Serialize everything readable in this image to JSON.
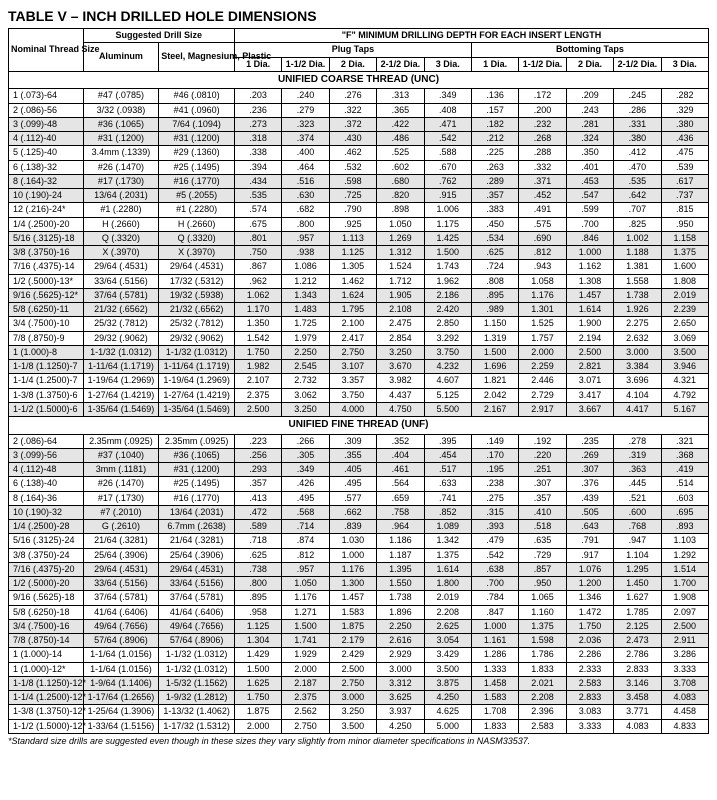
{
  "title": "TABLE V – INCH DRILLED HOLE DIMENSIONS",
  "footnote": "*Standard size drills are suggested even though in these sizes they vary slightly from minor diameter specifications in NASM33537.",
  "headers": {
    "nominal": "Nominal Thread Size",
    "suggested": "Suggested Drill Size",
    "aluminum": "Aluminum",
    "steel": "Steel, Magnesium, Plastic",
    "fmin": "\"F\" MINIMUM DRILLING DEPTH FOR EACH INSERT LENGTH",
    "plug": "Plug Taps",
    "bottoming": "Bottoming Taps",
    "d1": "1 Dia.",
    "d15": "1-1/2 Dia.",
    "d2": "2 Dia.",
    "d25": "2-1/2 Dia.",
    "d3": "3 Dia."
  },
  "sections": [
    {
      "title": "UNIFIED COARSE THREAD (UNC)",
      "rows": [
        {
          "label": "1 (.073)-64",
          "al": "#47 (.0785)",
          "st": "#46 (.0810)",
          "v": [
            ".203",
            ".240",
            ".276",
            ".313",
            ".349",
            ".136",
            ".172",
            ".209",
            ".245",
            ".282"
          ],
          "shade": false
        },
        {
          "label": "2 (.086)-56",
          "al": "3/32 (.0938)",
          "st": "#41 (.0960)",
          "v": [
            ".236",
            ".279",
            ".322",
            ".365",
            ".408",
            ".157",
            ".200",
            ".243",
            ".286",
            ".329"
          ],
          "shade": false
        },
        {
          "label": "3 (.099)-48",
          "al": "#36 (.1065)",
          "st": "7/64 (.1094)",
          "v": [
            ".273",
            ".323",
            ".372",
            ".422",
            ".471",
            ".182",
            ".232",
            ".281",
            ".331",
            ".380"
          ],
          "shade": true
        },
        {
          "label": "4 (.112)-40",
          "al": "#31 (.1200)",
          "st": "#31 (.1200)",
          "v": [
            ".318",
            ".374",
            ".430",
            ".486",
            ".542",
            ".212",
            ".268",
            ".324",
            ".380",
            ".436"
          ],
          "shade": true
        },
        {
          "label": "5 (.125)-40",
          "al": "3.4mm (.1339)",
          "st": "#29 (.1360)",
          "v": [
            ".338",
            ".400",
            ".462",
            ".525",
            ".588",
            ".225",
            ".288",
            ".350",
            ".412",
            ".475"
          ],
          "shade": false
        },
        {
          "label": "6 (.138)-32",
          "al": "#26 (.1470)",
          "st": "#25 (.1495)",
          "v": [
            ".394",
            ".464",
            ".532",
            ".602",
            ".670",
            ".263",
            ".332",
            ".401",
            ".470",
            ".539"
          ],
          "shade": false
        },
        {
          "label": "8 (.164)-32",
          "al": "#17 (.1730)",
          "st": "#16 (.1770)",
          "v": [
            ".434",
            ".516",
            ".598",
            ".680",
            ".762",
            ".289",
            ".371",
            ".453",
            ".535",
            ".617"
          ],
          "shade": true
        },
        {
          "label": "10 (.190)-24",
          "al": "13/64 (.2031)",
          "st": "#5 (.2055)",
          "v": [
            ".535",
            ".630",
            ".725",
            ".820",
            ".915",
            ".357",
            ".452",
            ".547",
            ".642",
            ".737"
          ],
          "shade": true
        },
        {
          "label": "12 (.216)-24*",
          "al": "#1 (.2280)",
          "st": "#1 (.2280)",
          "v": [
            ".574",
            ".682",
            ".790",
            ".898",
            "1.006",
            ".383",
            ".491",
            ".599",
            ".707",
            ".815"
          ],
          "shade": false
        },
        {
          "label": "1/4 (.2500)-20",
          "al": "H (.2660)",
          "st": "H (.2660)",
          "v": [
            ".675",
            ".800",
            ".925",
            "1.050",
            "1.175",
            ".450",
            ".575",
            ".700",
            ".825",
            ".950"
          ],
          "shade": false
        },
        {
          "label": "5/16 (.3125)-18",
          "al": "Q (.3320)",
          "st": "Q (.3320)",
          "v": [
            ".801",
            ".957",
            "1.113",
            "1.269",
            "1.425",
            ".534",
            ".690",
            ".846",
            "1.002",
            "1.158"
          ],
          "shade": true
        },
        {
          "label": "3/8 (.3750)-16",
          "al": "X (.3970)",
          "st": "X (.3970)",
          "v": [
            ".750",
            ".938",
            "1.125",
            "1.312",
            "1.500",
            ".625",
            ".812",
            "1.000",
            "1.188",
            "1.375"
          ],
          "shade": true
        },
        {
          "label": "7/16 (.4375)-14",
          "al": "29/64 (.4531)",
          "st": "29/64 (.4531)",
          "v": [
            ".867",
            "1.086",
            "1.305",
            "1.524",
            "1.743",
            ".724",
            ".943",
            "1.162",
            "1.381",
            "1.600"
          ],
          "shade": false
        },
        {
          "label": "1/2 (.5000)-13*",
          "al": "33/64 (.5156)",
          "st": "17/32 (.5312)",
          "v": [
            ".962",
            "1.212",
            "1.462",
            "1.712",
            "1.962",
            ".808",
            "1.058",
            "1.308",
            "1.558",
            "1.808"
          ],
          "shade": false
        },
        {
          "label": "9/16 (.5625)-12*",
          "al": "37/64 (.5781)",
          "st": "19/32 (.5938)",
          "v": [
            "1.062",
            "1.343",
            "1.624",
            "1.905",
            "2.186",
            ".895",
            "1.176",
            "1.457",
            "1.738",
            "2.019"
          ],
          "shade": true
        },
        {
          "label": "5/8 (.6250)-11",
          "al": "21/32 (.6562)",
          "st": "21/32 (.6562)",
          "v": [
            "1.170",
            "1.483",
            "1.795",
            "2.108",
            "2.420",
            ".989",
            "1.301",
            "1.614",
            "1.926",
            "2.239"
          ],
          "shade": true
        },
        {
          "label": "3/4 (.7500)-10",
          "al": "25/32 (.7812)",
          "st": "25/32 (.7812)",
          "v": [
            "1.350",
            "1.725",
            "2.100",
            "2.475",
            "2.850",
            "1.150",
            "1.525",
            "1.900",
            "2.275",
            "2.650"
          ],
          "shade": false
        },
        {
          "label": "7/8 (.8750)-9",
          "al": "29/32 (.9062)",
          "st": "29/32 (.9062)",
          "v": [
            "1.542",
            "1.979",
            "2.417",
            "2.854",
            "3.292",
            "1.319",
            "1.757",
            "2.194",
            "2.632",
            "3.069"
          ],
          "shade": false
        },
        {
          "label": "1 (1.000)-8",
          "al": "1-1/32 (1.0312)",
          "st": "1-1/32 (1.0312)",
          "v": [
            "1.750",
            "2.250",
            "2.750",
            "3.250",
            "3.750",
            "1.500",
            "2.000",
            "2.500",
            "3.000",
            "3.500"
          ],
          "shade": true
        },
        {
          "label": "1-1/8 (1.1250)-7",
          "al": "1-11/64 (1.1719)",
          "st": "1-11/64 (1.1719)",
          "v": [
            "1.982",
            "2.545",
            "3.107",
            "3.670",
            "4.232",
            "1.696",
            "2.259",
            "2.821",
            "3.384",
            "3.946"
          ],
          "shade": true
        },
        {
          "label": "1-1/4 (1.2500)-7",
          "al": "1-19/64 (1.2969)",
          "st": "1-19/64 (1.2969)",
          "v": [
            "2.107",
            "2.732",
            "3.357",
            "3.982",
            "4.607",
            "1.821",
            "2.446",
            "3.071",
            "3.696",
            "4.321"
          ],
          "shade": false
        },
        {
          "label": "1-3/8 (1.3750)-6",
          "al": "1-27/64 (1.4219)",
          "st": "1-27/64 (1.4219)",
          "v": [
            "2.375",
            "3.062",
            "3.750",
            "4.437",
            "5.125",
            "2.042",
            "2.729",
            "3.417",
            "4.104",
            "4.792"
          ],
          "shade": false
        },
        {
          "label": "1-1/2 (1.5000)-6",
          "al": "1-35/64 (1.5469)",
          "st": "1-35/64 (1.5469)",
          "v": [
            "2.500",
            "3.250",
            "4.000",
            "4.750",
            "5.500",
            "2.167",
            "2.917",
            "3.667",
            "4.417",
            "5.167"
          ],
          "shade": true
        }
      ]
    },
    {
      "title": "UNIFIED FINE THREAD (UNF)",
      "rows": [
        {
          "label": "2 (.086)-64",
          "al": "2.35mm (.0925)",
          "st": "2.35mm (.0925)",
          "v": [
            ".223",
            ".266",
            ".309",
            ".352",
            ".395",
            ".149",
            ".192",
            ".235",
            ".278",
            ".321"
          ],
          "shade": false
        },
        {
          "label": "3 (.099)-56",
          "al": "#37 (.1040)",
          "st": "#36 (.1065)",
          "v": [
            ".256",
            ".305",
            ".355",
            ".404",
            ".454",
            ".170",
            ".220",
            ".269",
            ".319",
            ".368"
          ],
          "shade": true
        },
        {
          "label": "4 (.112)-48",
          "al": "3mm (.1181)",
          "st": "#31 (.1200)",
          "v": [
            ".293",
            ".349",
            ".405",
            ".461",
            ".517",
            ".195",
            ".251",
            ".307",
            ".363",
            ".419"
          ],
          "shade": true
        },
        {
          "label": "6 (.138)-40",
          "al": "#26 (.1470)",
          "st": "#25 (.1495)",
          "v": [
            ".357",
            ".426",
            ".495",
            ".564",
            ".633",
            ".238",
            ".307",
            ".376",
            ".445",
            ".514"
          ],
          "shade": false
        },
        {
          "label": "8 (.164)-36",
          "al": "#17 (.1730)",
          "st": "#16 (.1770)",
          "v": [
            ".413",
            ".495",
            ".577",
            ".659",
            ".741",
            ".275",
            ".357",
            ".439",
            ".521",
            ".603"
          ],
          "shade": false
        },
        {
          "label": "10 (.190)-32",
          "al": "#7 (.2010)",
          "st": "13/64 (.2031)",
          "v": [
            ".472",
            ".568",
            ".662",
            ".758",
            ".852",
            ".315",
            ".410",
            ".505",
            ".600",
            ".695"
          ],
          "shade": true
        },
        {
          "label": "1/4 (.2500)-28",
          "al": "G (.2610)",
          "st": "6.7mm (.2638)",
          "v": [
            ".589",
            ".714",
            ".839",
            ".964",
            "1.089",
            ".393",
            ".518",
            ".643",
            ".768",
            ".893"
          ],
          "shade": true
        },
        {
          "label": "5/16 (.3125)-24",
          "al": "21/64 (.3281)",
          "st": "21/64 (.3281)",
          "v": [
            ".718",
            ".874",
            "1.030",
            "1.186",
            "1.342",
            ".479",
            ".635",
            ".791",
            ".947",
            "1.103"
          ],
          "shade": false
        },
        {
          "label": "3/8 (.3750)-24",
          "al": "25/64 (.3906)",
          "st": "25/64 (.3906)",
          "v": [
            ".625",
            ".812",
            "1.000",
            "1.187",
            "1.375",
            ".542",
            ".729",
            ".917",
            "1.104",
            "1.292"
          ],
          "shade": false
        },
        {
          "label": "7/16 (.4375)-20",
          "al": "29/64 (.4531)",
          "st": "29/64 (.4531)",
          "v": [
            ".738",
            ".957",
            "1.176",
            "1.395",
            "1.614",
            ".638",
            ".857",
            "1.076",
            "1.295",
            "1.514"
          ],
          "shade": true
        },
        {
          "label": "1/2 (.5000)-20",
          "al": "33/64 (.5156)",
          "st": "33/64 (.5156)",
          "v": [
            ".800",
            "1.050",
            "1.300",
            "1.550",
            "1.800",
            ".700",
            ".950",
            "1.200",
            "1.450",
            "1.700"
          ],
          "shade": true
        },
        {
          "label": "9/16 (.5625)-18",
          "al": "37/64 (.5781)",
          "st": "37/64 (.5781)",
          "v": [
            ".895",
            "1.176",
            "1.457",
            "1.738",
            "2.019",
            ".784",
            "1.065",
            "1.346",
            "1.627",
            "1.908"
          ],
          "shade": false
        },
        {
          "label": "5/8 (.6250)-18",
          "al": "41/64 (.6406)",
          "st": "41/64 (.6406)",
          "v": [
            ".958",
            "1.271",
            "1.583",
            "1.896",
            "2.208",
            ".847",
            "1.160",
            "1.472",
            "1.785",
            "2.097"
          ],
          "shade": false
        },
        {
          "label": "3/4 (.7500)-16",
          "al": "49/64 (.7656)",
          "st": "49/64 (.7656)",
          "v": [
            "1.125",
            "1.500",
            "1.875",
            "2.250",
            "2.625",
            "1.000",
            "1.375",
            "1.750",
            "2.125",
            "2.500"
          ],
          "shade": true
        },
        {
          "label": "7/8 (.8750)-14",
          "al": "57/64 (.8906)",
          "st": "57/64 (.8906)",
          "v": [
            "1.304",
            "1.741",
            "2.179",
            "2.616",
            "3.054",
            "1.161",
            "1.598",
            "2.036",
            "2.473",
            "2.911"
          ],
          "shade": true
        },
        {
          "label": "1 (1.000)-14",
          "al": "1-1/64 (1.0156)",
          "st": "1-1/32 (1.0312)",
          "v": [
            "1.429",
            "1.929",
            "2.429",
            "2.929",
            "3.429",
            "1.286",
            "1.786",
            "2.286",
            "2.786",
            "3.286"
          ],
          "shade": false
        },
        {
          "label": "1 (1.000)-12*",
          "al": "1-1/64 (1.0156)",
          "st": "1-1/32 (1.0312)",
          "v": [
            "1.500",
            "2.000",
            "2.500",
            "3.000",
            "3.500",
            "1.333",
            "1.833",
            "2.333",
            "2.833",
            "3.333"
          ],
          "shade": false
        },
        {
          "label": "1-1/8 (1.1250)-12*",
          "al": "1-9/64 (1.1406)",
          "st": "1-5/32 (1.1562)",
          "v": [
            "1.625",
            "2.187",
            "2.750",
            "3.312",
            "3.875",
            "1.458",
            "2.021",
            "2.583",
            "3.146",
            "3.708"
          ],
          "shade": true
        },
        {
          "label": "1-1/4 (1.2500)-12*",
          "al": "1-17/64 (1.2656)",
          "st": "1-9/32 (1.2812)",
          "v": [
            "1.750",
            "2.375",
            "3.000",
            "3.625",
            "4.250",
            "1.583",
            "2.208",
            "2.833",
            "3.458",
            "4.083"
          ],
          "shade": true
        },
        {
          "label": "1-3/8 (1.3750)-12*",
          "al": "1-25/64 (1.3906)",
          "st": "1-13/32 (1.4062)",
          "v": [
            "1.875",
            "2.562",
            "3.250",
            "3.937",
            "4.625",
            "1.708",
            "2.396",
            "3.083",
            "3.771",
            "4.458"
          ],
          "shade": false
        },
        {
          "label": "1-1/2 (1.5000)-12*",
          "al": "1-33/64 (1.5156)",
          "st": "1-17/32 (1.5312)",
          "v": [
            "2.000",
            "2.750",
            "3.500",
            "4.250",
            "5.000",
            "1.833",
            "2.583",
            "3.333",
            "4.083",
            "4.833"
          ],
          "shade": false
        }
      ]
    }
  ]
}
